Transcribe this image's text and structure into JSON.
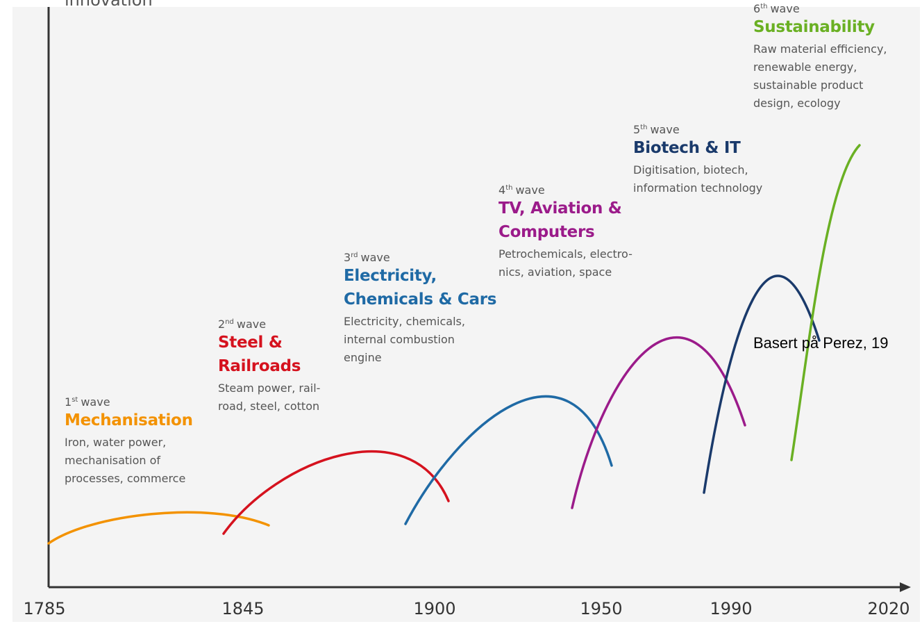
{
  "axis_label": "innovation",
  "source_note": "Basert på Perez, 19",
  "years": [
    "1785",
    "1845",
    "1900",
    "1950",
    "1990",
    "2020"
  ],
  "waves": [
    {
      "n": "1",
      "sup": "st",
      "word": "wave",
      "title": [
        "Mechanisation"
      ],
      "color": "#f39200",
      "description": [
        "Iron, water power,",
        "mechanisation of",
        "processes, commerce"
      ]
    },
    {
      "n": "2",
      "sup": "nd",
      "word": "wave",
      "title": [
        "Steel &",
        "Railroads"
      ],
      "color": "#d5121e",
      "description": [
        "Steam power, rail-",
        "road, steel, cotton"
      ]
    },
    {
      "n": "3",
      "sup": "rd",
      "word": "wave",
      "title": [
        "Electricity,",
        "Chemicals & Cars"
      ],
      "color": "#1f6aa5",
      "description": [
        "Electricity, chemicals,",
        "internal combustion",
        "engine"
      ]
    },
    {
      "n": "4",
      "sup": "th",
      "word": "wave",
      "title": [
        "TV, Aviation &",
        "Computers"
      ],
      "color": "#9b1b8a",
      "description": [
        "Petrochemicals, electro-",
        "nics, aviation, space"
      ]
    },
    {
      "n": "5",
      "sup": "th",
      "word": "wave",
      "title": [
        "Biotech & IT"
      ],
      "color": "#1a3a6b",
      "description": [
        "Digitisation, biotech,",
        "information technology"
      ]
    },
    {
      "n": "6",
      "sup": "th",
      "word": "wave",
      "title": [
        "Sustainability"
      ],
      "color": "#6ab023",
      "description": [
        "Raw material efficiency,",
        "renewable energy,",
        "sustainable product",
        "design, ecology"
      ]
    }
  ]
}
